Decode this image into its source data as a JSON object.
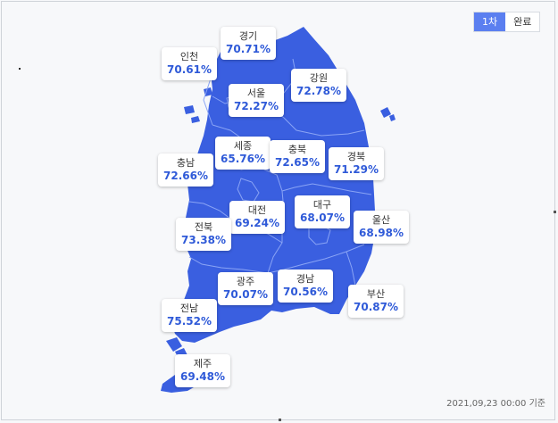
{
  "toggle": {
    "options": [
      "1차",
      "완료"
    ],
    "active": 0
  },
  "colors": {
    "land": "#3a5fe0",
    "land_light": "#5277ee",
    "border": "#8aa4f5",
    "label_value": "#2f5ad8"
  },
  "regions": [
    {
      "id": "gyeonggi",
      "name": "경기",
      "value": "70.71%"
    },
    {
      "id": "incheon",
      "name": "인천",
      "value": "70.61%"
    },
    {
      "id": "gangwon",
      "name": "강원",
      "value": "72.78%"
    },
    {
      "id": "seoul",
      "name": "서울",
      "value": "72.27%"
    },
    {
      "id": "sejong",
      "name": "세종",
      "value": "65.76%"
    },
    {
      "id": "chungbuk",
      "name": "충북",
      "value": "72.65%"
    },
    {
      "id": "gyeongbuk",
      "name": "경북",
      "value": "71.29%"
    },
    {
      "id": "chungnam",
      "name": "충남",
      "value": "72.66%"
    },
    {
      "id": "daegu",
      "name": "대구",
      "value": "68.07%"
    },
    {
      "id": "daejeon",
      "name": "대전",
      "value": "69.24%"
    },
    {
      "id": "ulsan",
      "name": "울산",
      "value": "68.98%"
    },
    {
      "id": "jeonbuk",
      "name": "전북",
      "value": "73.38%"
    },
    {
      "id": "gwangju",
      "name": "광주",
      "value": "70.07%"
    },
    {
      "id": "gyeongnam",
      "name": "경남",
      "value": "70.56%"
    },
    {
      "id": "busan",
      "name": "부산",
      "value": "70.87%"
    },
    {
      "id": "jeonnam",
      "name": "전남",
      "value": "75.52%"
    },
    {
      "id": "jeju",
      "name": "제주",
      "value": "69.48%"
    }
  ],
  "footnote": "2021,09,23 00:00 기준"
}
